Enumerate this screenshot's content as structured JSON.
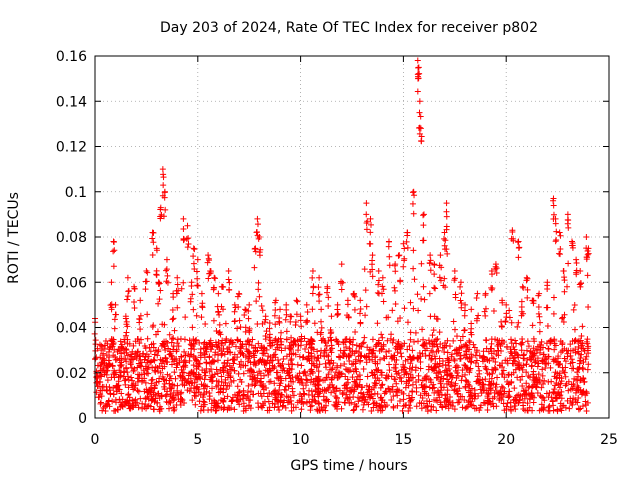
{
  "chart_data": {
    "type": "scatter",
    "title": "Day 203 of 2024, Rate Of TEC Index for receiver p802",
    "xlabel": "GPS time / hours",
    "ylabel": "ROTI / TECUs",
    "xlim": [
      0,
      25
    ],
    "ylim": [
      0,
      0.16
    ],
    "xticks": [
      0,
      5,
      10,
      15,
      20,
      25
    ],
    "xtick_labels": [
      "0",
      "5",
      "10",
      "15",
      "20",
      "25"
    ],
    "yticks": [
      0,
      0.02,
      0.04,
      0.06,
      0.08,
      0.1,
      0.12,
      0.14,
      0.16
    ],
    "ytick_labels": [
      "0",
      "0.02",
      "0.04",
      "0.06",
      "0.08",
      "0.1",
      "0.12",
      "0.14",
      "0.16"
    ],
    "grid": true,
    "marker": "+",
    "series": [
      {
        "name": "ROTI",
        "color": "#ff0000",
        "x": [
          0.0,
          0.3,
          0.8,
          0.9,
          1.0,
          1.5,
          1.6,
          1.9,
          2.2,
          2.5,
          2.8,
          3.0,
          3.1,
          3.2,
          3.3,
          3.4,
          3.5,
          3.8,
          4.0,
          4.3,
          4.5,
          4.7,
          4.8,
          5.0,
          5.2,
          5.5,
          5.6,
          5.8,
          6.0,
          6.2,
          6.5,
          6.8,
          7.0,
          7.3,
          7.5,
          7.8,
          7.9,
          8.0,
          8.3,
          8.5,
          8.8,
          9.0,
          9.3,
          9.5,
          9.8,
          10.0,
          10.3,
          10.6,
          10.9,
          11.0,
          11.3,
          11.5,
          11.8,
          12.0,
          12.3,
          12.6,
          12.9,
          13.2,
          13.4,
          13.5,
          13.8,
          14.0,
          14.3,
          14.6,
          14.8,
          15.0,
          15.2,
          15.5,
          15.7,
          15.75,
          15.8,
          15.85,
          16.0,
          16.3,
          16.5,
          16.8,
          17.0,
          17.1,
          17.5,
          17.8,
          18.0,
          18.3,
          18.6,
          19.0,
          19.3,
          19.5,
          19.8,
          20.0,
          20.3,
          20.6,
          20.8,
          21.0,
          21.3,
          21.6,
          22.0,
          22.3,
          22.4,
          22.6,
          22.8,
          23.0,
          23.2,
          23.4,
          23.6,
          23.9,
          24.0
        ],
        "y": [
          0.044,
          0.03,
          0.06,
          0.078,
          0.05,
          0.045,
          0.062,
          0.058,
          0.052,
          0.065,
          0.082,
          0.075,
          0.06,
          0.093,
          0.11,
          0.1,
          0.07,
          0.055,
          0.062,
          0.088,
          0.085,
          0.06,
          0.075,
          0.07,
          0.055,
          0.072,
          0.065,
          0.062,
          0.055,
          0.058,
          0.065,
          0.05,
          0.055,
          0.048,
          0.05,
          0.075,
          0.088,
          0.08,
          0.045,
          0.042,
          0.052,
          0.048,
          0.05,
          0.045,
          0.052,
          0.045,
          0.05,
          0.065,
          0.062,
          0.048,
          0.058,
          0.045,
          0.05,
          0.068,
          0.052,
          0.055,
          0.052,
          0.095,
          0.088,
          0.072,
          0.065,
          0.062,
          0.078,
          0.068,
          0.072,
          0.077,
          0.082,
          0.1,
          0.158,
          0.155,
          0.14,
          0.128,
          0.09,
          0.072,
          0.068,
          0.072,
          0.082,
          0.095,
          0.065,
          0.06,
          0.05,
          0.048,
          0.055,
          0.055,
          0.065,
          0.068,
          0.052,
          0.05,
          0.083,
          0.078,
          0.058,
          0.062,
          0.052,
          0.055,
          0.06,
          0.097,
          0.088,
          0.082,
          0.065,
          0.09,
          0.078,
          0.07,
          0.065,
          0.08,
          0.075
        ],
        "baseline_band": [
          0.0,
          0.035
        ]
      }
    ]
  }
}
